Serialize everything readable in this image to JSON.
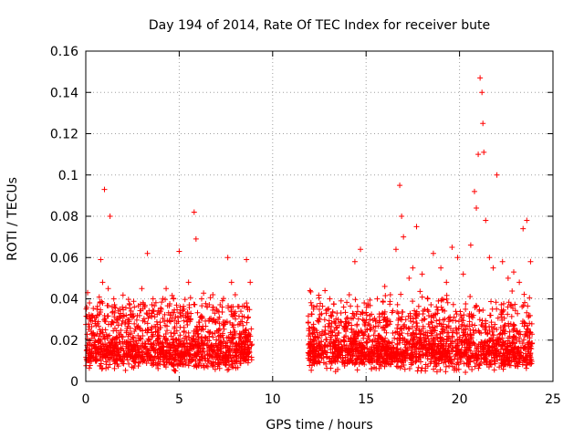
{
  "chart_data": {
    "type": "scatter",
    "title": "Day 194 of 2014, Rate Of TEC Index for receiver bute",
    "xlabel": "GPS time / hours",
    "ylabel": "ROTI / TECUs",
    "xlim": [
      0,
      25
    ],
    "ylim": [
      0,
      0.16
    ],
    "xticks": [
      0,
      5,
      10,
      15,
      20,
      25
    ],
    "xtick_labels": [
      "0",
      "5",
      "10",
      "15",
      "20",
      "25"
    ],
    "yticks": [
      0,
      0.02,
      0.04,
      0.06,
      0.08,
      0.1,
      0.12,
      0.14,
      0.16
    ],
    "ytick_labels": [
      "0",
      "0.02",
      "0.04",
      "0.06",
      "0.08",
      "0.1",
      "0.12",
      "0.14",
      "0.16"
    ],
    "grid": true,
    "marker": "+",
    "color": "#ff0000",
    "series": [
      {
        "x": [
          0.1,
          0.2,
          0.3,
          0.5,
          0.6,
          0.8,
          0.9,
          1.0,
          1.2,
          1.3,
          1.5,
          1.7,
          2.0,
          2.3,
          2.6,
          3.0,
          3.3,
          3.6,
          4.0,
          4.3,
          4.7,
          5.0,
          5.2,
          5.5,
          5.8,
          5.9,
          6.2,
          6.5,
          6.8,
          7.0,
          7.3,
          7.6,
          7.8,
          8.0,
          8.3,
          8.6,
          8.8,
          12.0,
          12.2,
          12.5,
          12.8,
          13.1,
          13.5,
          13.8,
          14.1,
          14.4,
          14.7,
          14.9,
          15.2,
          15.6,
          16.0,
          16.3,
          16.6,
          16.8,
          16.9,
          17.0,
          17.3,
          17.5,
          17.7,
          18.0,
          18.3,
          18.6,
          19.0,
          19.3,
          19.6,
          19.9,
          20.2,
          20.6,
          20.8,
          20.9,
          21.0,
          21.1,
          21.2,
          21.25,
          21.3,
          21.4,
          21.6,
          21.8,
          22.0,
          22.3,
          22.6,
          22.9,
          23.2,
          23.4,
          23.6,
          23.8
        ],
        "y": [
          0.043,
          0.038,
          0.032,
          0.028,
          0.035,
          0.059,
          0.048,
          0.093,
          0.045,
          0.08,
          0.04,
          0.03,
          0.032,
          0.028,
          0.036,
          0.045,
          0.062,
          0.04,
          0.034,
          0.045,
          0.04,
          0.063,
          0.035,
          0.048,
          0.082,
          0.069,
          0.04,
          0.036,
          0.042,
          0.035,
          0.036,
          0.06,
          0.048,
          0.042,
          0.034,
          0.059,
          0.048,
          0.044,
          0.036,
          0.03,
          0.044,
          0.032,
          0.03,
          0.036,
          0.042,
          0.058,
          0.064,
          0.038,
          0.03,
          0.04,
          0.046,
          0.042,
          0.064,
          0.095,
          0.08,
          0.07,
          0.05,
          0.055,
          0.075,
          0.052,
          0.04,
          0.062,
          0.055,
          0.048,
          0.065,
          0.06,
          0.052,
          0.066,
          0.092,
          0.084,
          0.11,
          0.147,
          0.14,
          0.125,
          0.111,
          0.078,
          0.06,
          0.055,
          0.1,
          0.058,
          0.05,
          0.053,
          0.048,
          0.074,
          0.078,
          0.058
        ]
      }
    ]
  }
}
